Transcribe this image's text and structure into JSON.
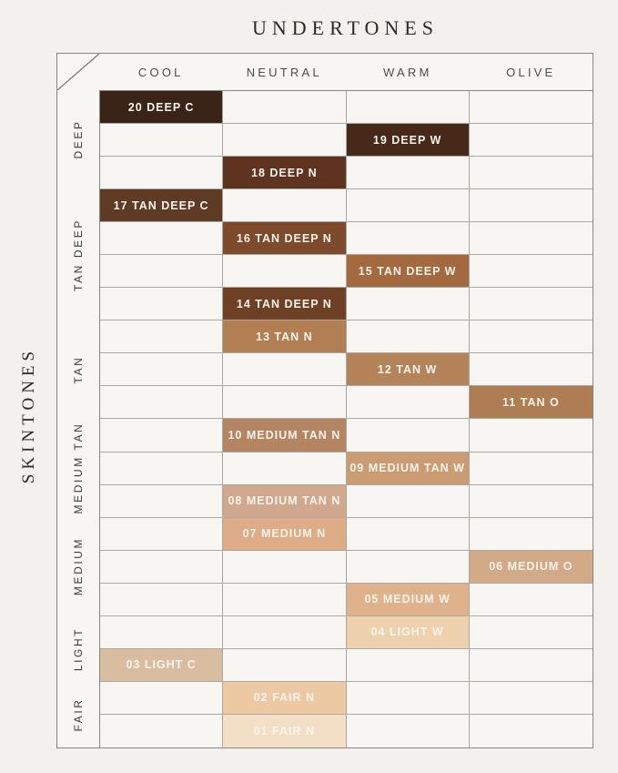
{
  "title": "UNDERTONES",
  "side_title": "SKINTONES",
  "style": {
    "page_bg": "#f3f1ed",
    "cell_bg": "#f7f6f3",
    "grid_line": "#aba7a1",
    "outer_line": "#87847f",
    "title_color": "#2d2a25",
    "header_color": "#4d4b47",
    "cell_text_color": "#f8f3ec"
  },
  "chart_data": {
    "type": "heatmap",
    "title": "UNDERTONES",
    "ylabel": "SKINTONES",
    "columns": [
      "COOL",
      "NEUTRAL",
      "WARM",
      "OLIVE"
    ],
    "row_groups": [
      {
        "label": "DEEP",
        "rows": 3
      },
      {
        "label": "TAN DEEP",
        "rows": 4
      },
      {
        "label": "TAN",
        "rows": 3
      },
      {
        "label": "MEDIUM TAN",
        "rows": 3
      },
      {
        "label": "MEDIUM",
        "rows": 3
      },
      {
        "label": "LIGHT",
        "rows": 2
      },
      {
        "label": "FAIR",
        "rows": 2
      }
    ],
    "cells": [
      {
        "row": 1,
        "group": "DEEP",
        "column": "COOL",
        "label": "20 DEEP C",
        "color": "#3a2418"
      },
      {
        "row": 2,
        "group": "DEEP",
        "column": "WARM",
        "label": "19 DEEP W",
        "color": "#47291a"
      },
      {
        "row": 3,
        "group": "DEEP",
        "column": "NEUTRAL",
        "label": "18 DEEP N",
        "color": "#5e3420"
      },
      {
        "row": 4,
        "group": "TAN DEEP",
        "column": "COOL",
        "label": "17 TAN DEEP C",
        "color": "#5f3b26"
      },
      {
        "row": 5,
        "group": "TAN DEEP",
        "column": "NEUTRAL",
        "label": "16 TAN DEEP N",
        "color": "#7d4a2b"
      },
      {
        "row": 6,
        "group": "TAN DEEP",
        "column": "WARM",
        "label": "15 TAN DEEP W",
        "color": "#a4693f"
      },
      {
        "row": 7,
        "group": "TAN DEEP",
        "column": "NEUTRAL",
        "label": "14 TAN DEEP N",
        "color": "#6f4124"
      },
      {
        "row": 8,
        "group": "TAN",
        "column": "NEUTRAL",
        "label": "13 TAN N",
        "color": "#b17f52"
      },
      {
        "row": 9,
        "group": "TAN",
        "column": "WARM",
        "label": "12 TAN W",
        "color": "#b4835a"
      },
      {
        "row": 10,
        "group": "TAN",
        "column": "OLIVE",
        "label": "11 TAN O",
        "color": "#ae7d54"
      },
      {
        "row": 11,
        "group": "MEDIUM TAN",
        "column": "NEUTRAL",
        "label": "10 MEDIUM TAN N",
        "color": "#b48562"
      },
      {
        "row": 12,
        "group": "MEDIUM TAN",
        "column": "WARM",
        "label": "09 MEDIUM TAN W",
        "color": "#cb9c71"
      },
      {
        "row": 13,
        "group": "MEDIUM TAN",
        "column": "NEUTRAL",
        "label": "08 MEDIUM TAN N",
        "color": "#d0a88e"
      },
      {
        "row": 14,
        "group": "MEDIUM",
        "column": "NEUTRAL",
        "label": "07 MEDIUM N",
        "color": "#deac86"
      },
      {
        "row": 15,
        "group": "MEDIUM",
        "column": "OLIVE",
        "label": "06 MEDIUM O",
        "color": "#d3aa88"
      },
      {
        "row": 16,
        "group": "MEDIUM",
        "column": "WARM",
        "label": "05 MEDIUM W",
        "color": "#e0b28c"
      },
      {
        "row": 17,
        "group": "LIGHT",
        "column": "WARM",
        "label": "04 LIGHT W",
        "color": "#eed2ad"
      },
      {
        "row": 18,
        "group": "LIGHT",
        "column": "COOL",
        "label": "03 LIGHT C",
        "color": "#d9bda1"
      },
      {
        "row": 19,
        "group": "FAIR",
        "column": "NEUTRAL",
        "label": "02 FAIR N",
        "color": "#ecc9a3"
      },
      {
        "row": 20,
        "group": "FAIR",
        "column": "NEUTRAL",
        "label": "01 FAIR N",
        "color": "#f2dfc5"
      }
    ]
  }
}
